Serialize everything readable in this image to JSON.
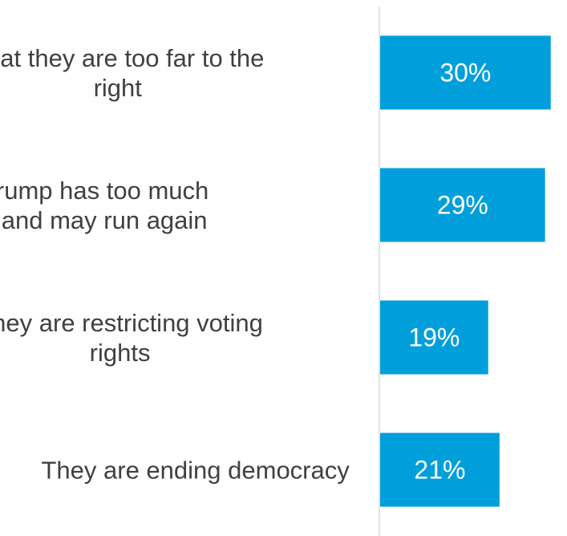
{
  "chart_data": {
    "type": "bar",
    "orientation": "horizontal",
    "categories": [
      [
        "That they are too far to the",
        "right"
      ],
      [
        "That Trump has too much",
        "power and may run again"
      ],
      [
        "They are restricting voting",
        "rights"
      ],
      [
        "They are ending democracy"
      ]
    ],
    "values": [
      30,
      29,
      19,
      21
    ],
    "value_labels": [
      "30%",
      "29%",
      "19%",
      "21%"
    ],
    "title": "",
    "xlabel": "",
    "ylabel": "",
    "xlim": [
      0,
      33
    ],
    "grid": false,
    "legend": "none",
    "bar_color": "#009fdb",
    "label_color": "#404040",
    "axis_color": "#d9d9d9"
  }
}
